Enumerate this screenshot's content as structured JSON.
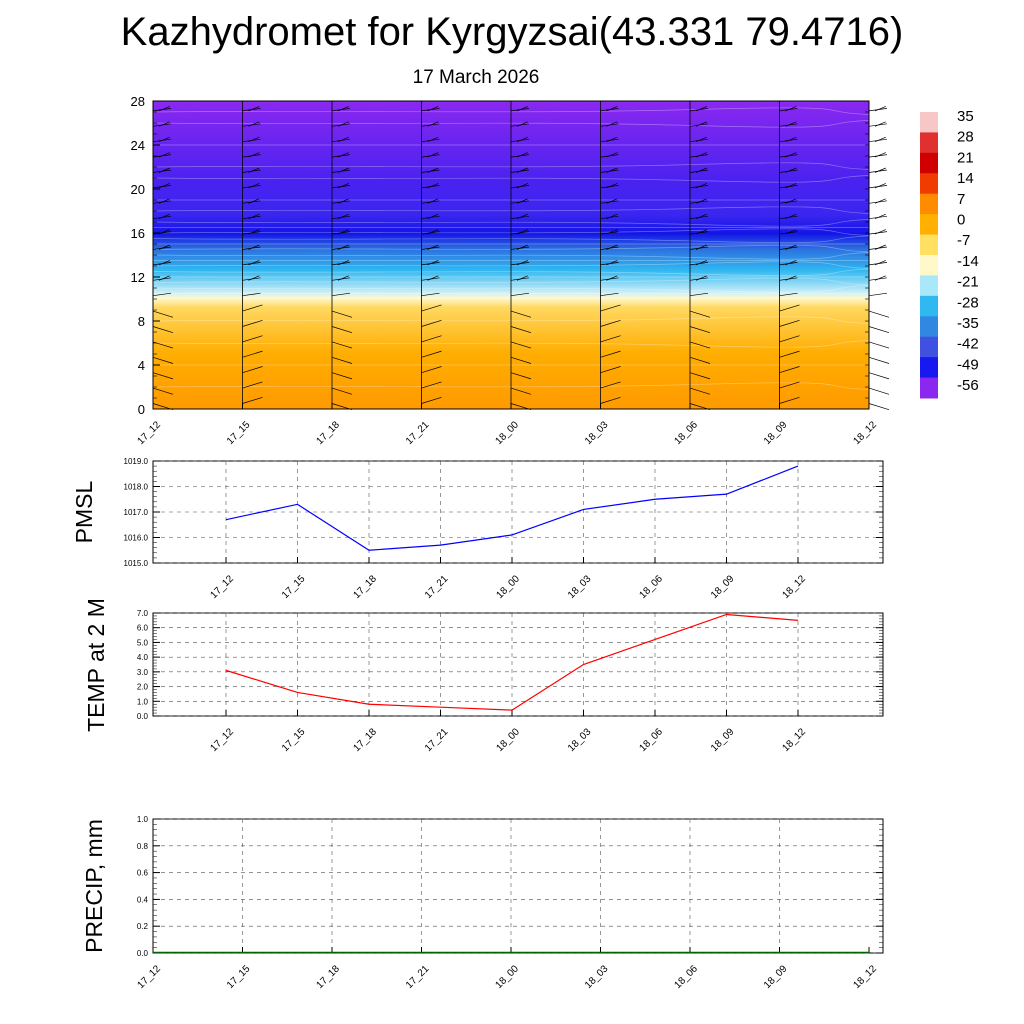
{
  "header": {
    "title": "Kazhydromet for Kyrgyzsai(43.331 79.4716)",
    "date": "17 March 2026"
  },
  "chart_data": [
    {
      "type": "heatmap",
      "name": "vertical temperature cross-section",
      "x_ticks": [
        "17_12",
        "17_15",
        "17_18",
        "17_21",
        "18_00",
        "18_03",
        "18_06",
        "18_09",
        "18_12"
      ],
      "y_ticks": [
        "0",
        "4",
        "8",
        "12",
        "16",
        "20",
        "24",
        "28"
      ],
      "ylim": [
        0,
        28
      ],
      "colorbar_labels": [
        "35",
        "28",
        "21",
        "14",
        "7",
        "0",
        "-7",
        "-14",
        "-21",
        "-28",
        "-35",
        "-42",
        "-49",
        "-56"
      ],
      "colorbar_colors": [
        "#f7c6c6",
        "#e03030",
        "#d00000",
        "#f03c00",
        "#ff8c00",
        "#ffb000",
        "#ffe060",
        "#fff8c8",
        "#a8e8f8",
        "#30b8f0",
        "#3088e0",
        "#4050e0",
        "#1818f0",
        "#8a28f0"
      ],
      "layers": [
        {
          "height_range": [
            0,
            10
          ],
          "color": "#ffb000",
          "approx_temp": "0 to 7"
        },
        {
          "height_range": [
            10,
            11
          ],
          "color": "#fff3b0",
          "approx_temp": "-7"
        },
        {
          "height_range": [
            11,
            15
          ],
          "color": "#30b8f0",
          "approx_temp": "-14 to -35"
        },
        {
          "height_range": [
            15,
            18
          ],
          "color": "#1818e8",
          "approx_temp": "-49 to -56"
        },
        {
          "height_range": [
            18,
            28
          ],
          "color": "#7a2cf0",
          "approx_temp": "-56"
        }
      ]
    },
    {
      "type": "line",
      "name": "PMSL",
      "ylabel": "PMSL",
      "x": [
        "17_12",
        "17_15",
        "17_18",
        "17_21",
        "18_00",
        "18_03",
        "18_06",
        "18_09",
        "18_12"
      ],
      "values": [
        1016.7,
        1017.3,
        1015.5,
        1015.7,
        1016.1,
        1017.1,
        1017.5,
        1017.7,
        1018.8
      ],
      "ylim": [
        1015.0,
        1019.0
      ],
      "y_ticks": [
        "1015.0",
        "1016.0",
        "1017.0",
        "1018.0",
        "1019.0"
      ],
      "color": "#0000ff"
    },
    {
      "type": "line",
      "name": "TEMP at 2 M",
      "ylabel": "TEMP at 2 M",
      "x": [
        "17_12",
        "17_15",
        "17_18",
        "17_21",
        "18_00",
        "18_03",
        "18_06",
        "18_09",
        "18_12"
      ],
      "values": [
        3.1,
        1.6,
        0.8,
        0.6,
        0.4,
        3.5,
        5.2,
        6.9,
        6.5
      ],
      "ylim": [
        0.0,
        7.0
      ],
      "y_ticks": [
        "0.0",
        "1.0",
        "2.0",
        "3.0",
        "4.0",
        "5.0",
        "6.0",
        "7.0"
      ],
      "color": "#ff0000"
    },
    {
      "type": "line",
      "name": "PRECIP, mm",
      "ylabel": "PRECIP, mm",
      "x": [
        "17_12",
        "17_15",
        "17_18",
        "17_21",
        "18_00",
        "18_03",
        "18_06",
        "18_09",
        "18_12"
      ],
      "values": [
        0,
        0,
        0,
        0,
        0,
        0,
        0,
        0,
        0
      ],
      "ylim": [
        0.0,
        1.0
      ],
      "y_ticks": [
        "0.0",
        "0.2",
        "0.4",
        "0.6",
        "0.8",
        "1.0"
      ],
      "color": "#006400"
    }
  ]
}
